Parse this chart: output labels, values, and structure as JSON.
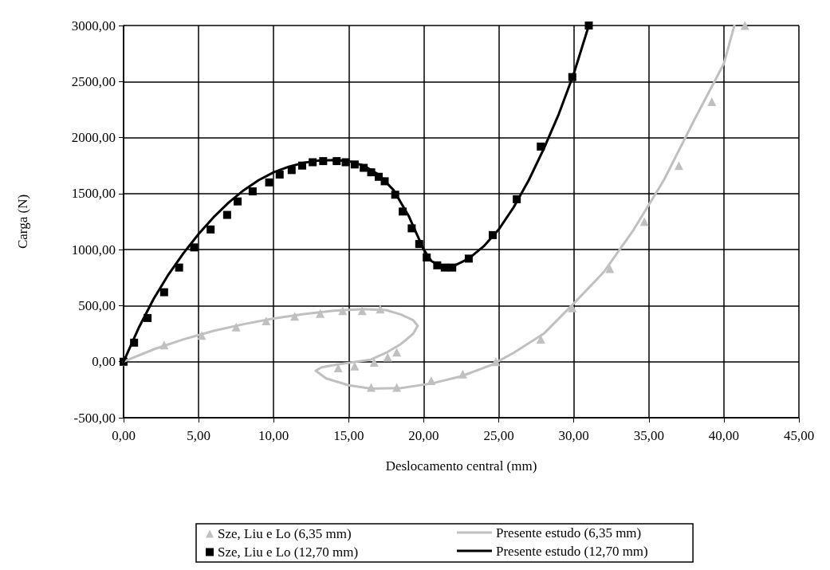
{
  "chart_data": {
    "type": "line",
    "xlabel": "Deslocamento central (mm)",
    "ylabel": "Carga (N)",
    "xlim": [
      0,
      45
    ],
    "ylim": [
      -500,
      3000
    ],
    "xticks": [
      {
        "value": 0,
        "label": "0,00"
      },
      {
        "value": 5,
        "label": "5,00"
      },
      {
        "value": 10,
        "label": "10,00"
      },
      {
        "value": 15,
        "label": "15,00"
      },
      {
        "value": 20,
        "label": "20,00"
      },
      {
        "value": 25,
        "label": "25,00"
      },
      {
        "value": 30,
        "label": "30,00"
      },
      {
        "value": 35,
        "label": "35,00"
      },
      {
        "value": 40,
        "label": "40,00"
      },
      {
        "value": 45,
        "label": "45,00"
      }
    ],
    "yticks": [
      {
        "value": -500,
        "label": "-500,00"
      },
      {
        "value": 0,
        "label": "0,00"
      },
      {
        "value": 500,
        "label": "500,00"
      },
      {
        "value": 1000,
        "label": "1000,00"
      },
      {
        "value": 1500,
        "label": "1500,00"
      },
      {
        "value": 2000,
        "label": "2000,00"
      },
      {
        "value": 2500,
        "label": "2500,00"
      },
      {
        "value": 3000,
        "label": "3000,00"
      }
    ],
    "grid": true,
    "legend": "bottom",
    "series": [
      {
        "name": "Sze, Liu e Lo (6,35 mm)",
        "type": "scatter",
        "marker": "triangle",
        "color": "#c0c0c0",
        "x": [
          0,
          2.7,
          5.2,
          7.5,
          9.5,
          11.4,
          13.1,
          14.6,
          15.9,
          17.1,
          18.2,
          17.6,
          16.7,
          15.4,
          14.3,
          16.5,
          18.2,
          20.5,
          22.6,
          24.8,
          27.8,
          29.9,
          32.4,
          34.7,
          37.0,
          39.2,
          41.4
        ],
        "values": [
          0,
          150,
          235,
          310,
          365,
          405,
          430,
          455,
          455,
          470,
          85,
          40,
          -5,
          -40,
          -55,
          -230,
          -230,
          -170,
          -110,
          0,
          200,
          480,
          830,
          1250,
          1750,
          2320,
          3000
        ]
      },
      {
        "name": "Presente estudo (6,35 mm)",
        "type": "line",
        "line_style": "solid",
        "color": "#c0c0c0",
        "x": [
          0,
          2,
          4,
          6,
          8,
          10,
          12,
          14,
          16,
          17.5,
          18.5,
          19.3,
          19.6,
          19.3,
          18.5,
          17.5,
          16.5,
          15,
          14,
          13.2,
          12.8,
          13.5,
          15,
          16.5,
          18.5,
          20.5,
          22.5,
          24.5,
          26,
          28,
          30,
          32,
          34,
          36,
          38,
          40,
          40.7
        ],
        "values": [
          0,
          110,
          200,
          275,
          335,
          385,
          425,
          455,
          470,
          460,
          420,
          370,
          320,
          250,
          160,
          80,
          20,
          -10,
          -30,
          -50,
          -80,
          -150,
          -210,
          -240,
          -235,
          -195,
          -130,
          -30,
          80,
          250,
          520,
          800,
          1180,
          1620,
          2150,
          2660,
          3000
        ]
      },
      {
        "name": "Sze, Liu e Lo (12,70 mm)",
        "type": "scatter",
        "marker": "square",
        "color": "#000000",
        "x": [
          0,
          0.7,
          1.6,
          2.7,
          3.7,
          4.7,
          5.8,
          6.9,
          7.6,
          8.6,
          9.7,
          10.4,
          11.2,
          11.9,
          12.6,
          13.3,
          14.2,
          14.8,
          15.4,
          16.0,
          16.5,
          17.0,
          17.4,
          18.1,
          18.6,
          19.2,
          19.7,
          20.2,
          20.9,
          21.4,
          21.9,
          23.0,
          24.6,
          26.2,
          27.8,
          29.9,
          31.0
        ],
        "values": [
          0,
          170,
          390,
          620,
          840,
          1020,
          1180,
          1310,
          1430,
          1520,
          1600,
          1670,
          1710,
          1750,
          1780,
          1790,
          1790,
          1780,
          1760,
          1730,
          1690,
          1650,
          1610,
          1490,
          1340,
          1190,
          1050,
          930,
          860,
          840,
          840,
          920,
          1130,
          1450,
          1920,
          2540,
          3000
        ]
      },
      {
        "name": "Presente estudo (12,70 mm)",
        "type": "line",
        "line_style": "solid",
        "color": "#000000",
        "x": [
          0,
          1,
          2,
          3,
          4,
          5,
          6,
          7,
          8,
          9,
          10,
          11,
          12,
          13,
          14,
          15,
          16,
          17,
          18,
          19,
          19.5,
          20,
          20.5,
          21,
          21.5,
          22,
          23,
          24,
          25,
          26,
          27,
          28,
          29,
          30,
          31
        ],
        "values": [
          0,
          300,
          560,
          780,
          970,
          1140,
          1290,
          1420,
          1530,
          1620,
          1690,
          1740,
          1775,
          1795,
          1800,
          1790,
          1750,
          1670,
          1530,
          1300,
          1150,
          1000,
          900,
          860,
          845,
          855,
          920,
          1030,
          1180,
          1380,
          1620,
          1900,
          2210,
          2570,
          3000
        ]
      }
    ]
  }
}
